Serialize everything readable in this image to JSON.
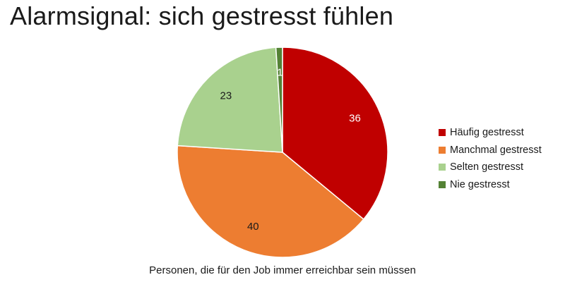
{
  "chart_data": {
    "type": "pie",
    "title": "Alarmsignal: sich gestresst fühlen",
    "caption": "Personen, die für den Job immer erreichbar sein müssen",
    "start_angle_deg": 0,
    "legend_position": "right",
    "slices": [
      {
        "label": "Häufig gestresst",
        "value": 36,
        "color": "#c00000",
        "label_color": "#ffffff"
      },
      {
        "label": "Manchmal gestresst",
        "value": 40,
        "color": "#ed7d31",
        "label_color": "#1a1a1a"
      },
      {
        "label": "Selten gestresst",
        "value": 23,
        "color": "#a9d18e",
        "label_color": "#1a1a1a"
      },
      {
        "label": "Nie gestresst",
        "value": 1,
        "color": "#548235",
        "label_color": "#ffffff"
      }
    ]
  }
}
